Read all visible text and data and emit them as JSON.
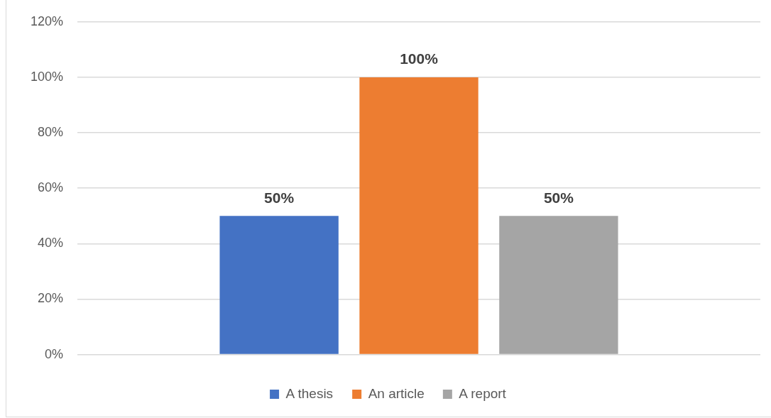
{
  "chart_data": {
    "type": "bar",
    "categories": [
      null
    ],
    "series": [
      {
        "name": "A thesis",
        "color": "#4472c4",
        "values": [
          50
        ],
        "value_labels": [
          "50%"
        ]
      },
      {
        "name": "An article",
        "color": "#ed7d31",
        "values": [
          100
        ],
        "value_labels": [
          "100%"
        ]
      },
      {
        "name": "A report",
        "color": "#a5a5a5",
        "values": [
          50
        ],
        "value_labels": [
          "50%"
        ]
      }
    ],
    "ylim": [
      0,
      120
    ],
    "yticks": [
      {
        "value": 0,
        "label": "0%"
      },
      {
        "value": 20,
        "label": "20%"
      },
      {
        "value": 40,
        "label": "40%"
      },
      {
        "value": 60,
        "label": "60%"
      },
      {
        "value": 80,
        "label": "80%"
      },
      {
        "value": 100,
        "label": "100%"
      },
      {
        "value": 120,
        "label": "120%"
      }
    ],
    "grid": "y",
    "legend": "bottom"
  }
}
